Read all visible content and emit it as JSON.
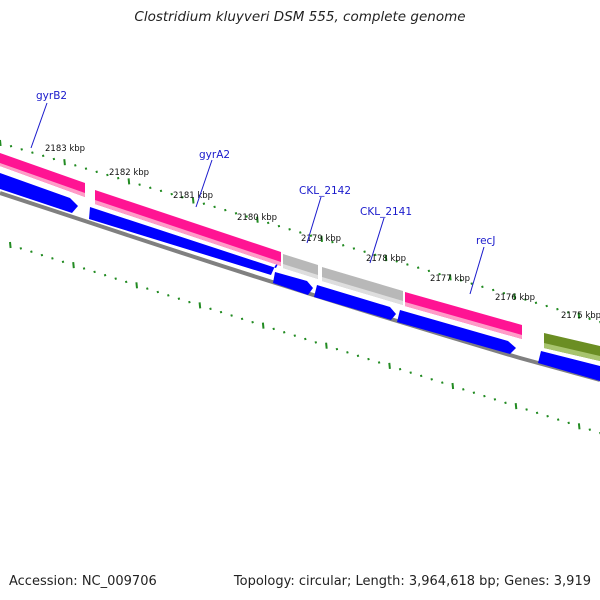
{
  "title": "Clostridium kluyveri DSM 555, complete genome",
  "footer": {
    "accession": "Accession: NC_009706",
    "topology": "Topology: circular; Length: 3,964,618 bp; Genes: 3,919"
  },
  "colors": {
    "cds": "#ff1493",
    "gene": "#0000ff",
    "other": "#b8b8b8",
    "rna": "#6b8e23",
    "backbone": "#808080",
    "tick": "#228b22",
    "label": "#1a1acc"
  },
  "tick_labels": [
    "2183 kbp",
    "2182 kbp",
    "2181 kbp",
    "2180 kbp",
    "2179 kbp",
    "2178 kbp",
    "2177 kbp",
    "2176 kbp",
    "2175 kbp"
  ],
  "gene_labels": [
    "gyrB2",
    "gyrA2",
    "CKL_2142",
    "CKL_2141",
    "recJ"
  ]
}
